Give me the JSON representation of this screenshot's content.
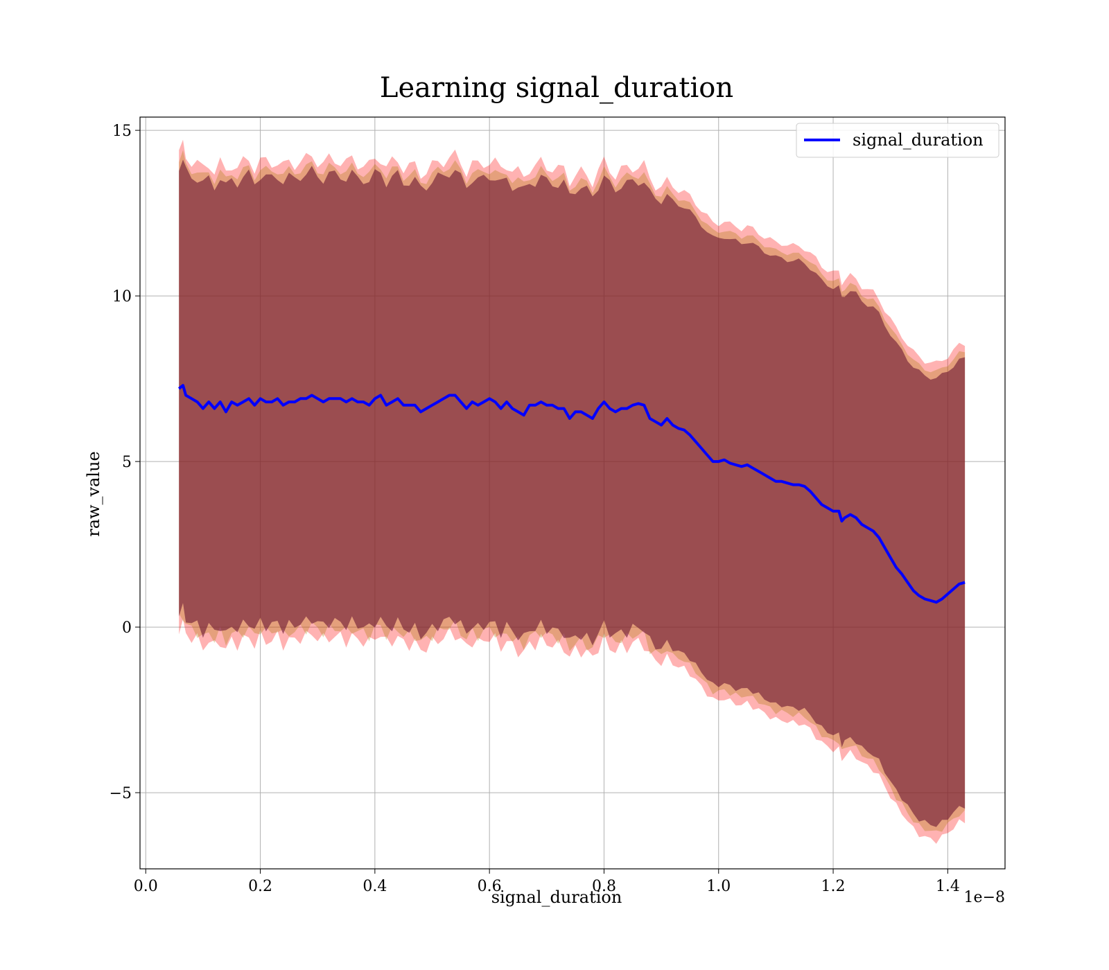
{
  "chart_data": {
    "type": "line",
    "title": "Learning signal_duration",
    "xlabel": "signal_duration",
    "ylabel": "raw_value",
    "x_offset_label": "1e−8",
    "xlim": [
      -0.01,
      1.5
    ],
    "ylim": [
      -7.3,
      15.4
    ],
    "grid": true,
    "legend_position": "top-right",
    "x_ticks": [
      0.0,
      0.2,
      0.4,
      0.6,
      0.8,
      1.0,
      1.2,
      1.4
    ],
    "x_tick_labels": [
      "0.0",
      "0.2",
      "0.4",
      "0.6",
      "0.8",
      "1.0",
      "1.2",
      "1.4"
    ],
    "y_ticks": [
      -5,
      0,
      5,
      10,
      15
    ],
    "y_tick_labels": [
      "−5",
      "0",
      "5",
      "10",
      "15"
    ],
    "series": [
      {
        "name": "signal_duration",
        "color": "#0000ff",
        "x": [
          0.058,
          0.065,
          0.07,
          0.08,
          0.09,
          0.1,
          0.11,
          0.12,
          0.13,
          0.14,
          0.15,
          0.16,
          0.17,
          0.18,
          0.19,
          0.2,
          0.21,
          0.22,
          0.23,
          0.24,
          0.25,
          0.26,
          0.27,
          0.28,
          0.29,
          0.3,
          0.31,
          0.32,
          0.33,
          0.34,
          0.35,
          0.36,
          0.37,
          0.38,
          0.39,
          0.4,
          0.41,
          0.42,
          0.43,
          0.44,
          0.45,
          0.46,
          0.47,
          0.48,
          0.49,
          0.5,
          0.51,
          0.52,
          0.53,
          0.54,
          0.55,
          0.56,
          0.57,
          0.58,
          0.59,
          0.6,
          0.61,
          0.62,
          0.63,
          0.64,
          0.65,
          0.66,
          0.67,
          0.68,
          0.69,
          0.7,
          0.71,
          0.72,
          0.73,
          0.74,
          0.75,
          0.76,
          0.77,
          0.78,
          0.79,
          0.8,
          0.81,
          0.82,
          0.83,
          0.84,
          0.85,
          0.86,
          0.87,
          0.88,
          0.89,
          0.9,
          0.91,
          0.92,
          0.93,
          0.94,
          0.95,
          0.96,
          0.97,
          0.98,
          0.99,
          1.0,
          1.01,
          1.02,
          1.03,
          1.04,
          1.05,
          1.06,
          1.07,
          1.08,
          1.09,
          1.1,
          1.11,
          1.12,
          1.13,
          1.14,
          1.15,
          1.16,
          1.17,
          1.18,
          1.19,
          1.2,
          1.21,
          1.215,
          1.22,
          1.23,
          1.24,
          1.25,
          1.26,
          1.27,
          1.28,
          1.29,
          1.3,
          1.31,
          1.32,
          1.33,
          1.34,
          1.35,
          1.36,
          1.37,
          1.38,
          1.39,
          1.4,
          1.41,
          1.42,
          1.43
        ],
        "y": [
          7.2,
          7.3,
          7.0,
          6.9,
          6.8,
          6.6,
          6.8,
          6.6,
          6.8,
          6.5,
          6.8,
          6.7,
          6.8,
          6.9,
          6.7,
          6.9,
          6.8,
          6.8,
          6.9,
          6.7,
          6.8,
          6.8,
          6.9,
          6.9,
          7.0,
          6.9,
          6.8,
          6.9,
          6.9,
          6.9,
          6.8,
          6.9,
          6.8,
          6.8,
          6.7,
          6.9,
          7.0,
          6.7,
          6.8,
          6.9,
          6.7,
          6.7,
          6.7,
          6.5,
          6.6,
          6.7,
          6.8,
          6.9,
          7.0,
          7.0,
          6.8,
          6.6,
          6.8,
          6.7,
          6.8,
          6.9,
          6.8,
          6.6,
          6.8,
          6.6,
          6.5,
          6.4,
          6.7,
          6.7,
          6.8,
          6.7,
          6.7,
          6.6,
          6.6,
          6.3,
          6.5,
          6.5,
          6.4,
          6.3,
          6.6,
          6.8,
          6.6,
          6.5,
          6.6,
          6.6,
          6.7,
          6.75,
          6.7,
          6.3,
          6.2,
          6.1,
          6.3,
          6.1,
          6.0,
          5.95,
          5.8,
          5.6,
          5.4,
          5.2,
          5.0,
          5.0,
          5.05,
          4.95,
          4.9,
          4.85,
          4.9,
          4.8,
          4.7,
          4.6,
          4.5,
          4.4,
          4.4,
          4.35,
          4.3,
          4.3,
          4.25,
          4.1,
          3.9,
          3.7,
          3.6,
          3.5,
          3.5,
          3.2,
          3.3,
          3.4,
          3.3,
          3.1,
          3.0,
          2.9,
          2.7,
          2.4,
          2.1,
          1.8,
          1.6,
          1.35,
          1.1,
          0.95,
          0.85,
          0.8,
          0.75,
          0.85,
          1.0,
          1.15,
          1.3,
          1.35
        ]
      }
    ],
    "bands": [
      {
        "color": "#ff0000",
        "opacity": 0.3,
        "outer_offset": 7.2,
        "jitter": 0.22
      },
      {
        "color": "#aa7700",
        "opacity": 0.3,
        "outer_offset": 6.95,
        "jitter": 0.18
      },
      {
        "color": "#6e1a35",
        "opacity": 0.62,
        "outer_offset": 6.75,
        "jitter": 0.18
      }
    ]
  }
}
